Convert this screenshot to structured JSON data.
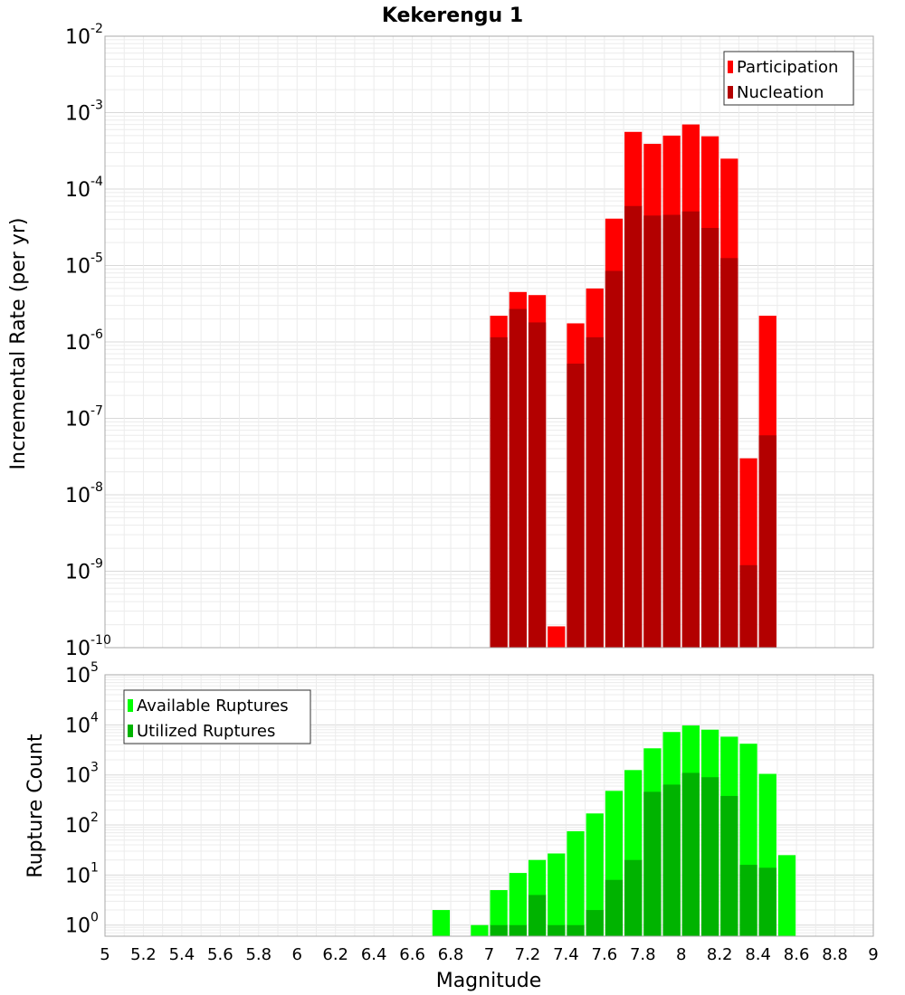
{
  "chart_data": {
    "title": "Kekerengu 1",
    "xlabel": "Magnitude",
    "x_ticks": [
      "5",
      "5.2",
      "5.4",
      "5.6",
      "5.8",
      "6",
      "6.2",
      "6.4",
      "6.6",
      "6.8",
      "7",
      "7.2",
      "7.4",
      "7.6",
      "7.8",
      "8",
      "8.2",
      "8.4",
      "8.6",
      "8.8",
      "9"
    ],
    "xlim": [
      5,
      9
    ],
    "bin_width": 0.1,
    "panels": [
      {
        "type": "bar",
        "ylabel": "Incremental Rate (per yr)",
        "yscale": "log",
        "ylim": [
          1e-10,
          0.01
        ],
        "y_ticks": [
          {
            "base": "10",
            "exp": "-10"
          },
          {
            "base": "10",
            "exp": "-9"
          },
          {
            "base": "10",
            "exp": "-8"
          },
          {
            "base": "10",
            "exp": "-7"
          },
          {
            "base": "10",
            "exp": "-6"
          },
          {
            "base": "10",
            "exp": "-5"
          },
          {
            "base": "10",
            "exp": "-4"
          },
          {
            "base": "10",
            "exp": "-3"
          },
          {
            "base": "10",
            "exp": "-2"
          }
        ],
        "legend_position": "top-right",
        "grid": true,
        "x": [
          7.05,
          7.15,
          7.25,
          7.35,
          7.45,
          7.55,
          7.65,
          7.75,
          7.85,
          7.95,
          8.05,
          8.15,
          8.25,
          8.35,
          8.45
        ],
        "series": [
          {
            "name": "Participation",
            "color": "#ff0000",
            "values": [
              2.2e-06,
              4.5e-06,
              4.1e-06,
              1.9e-10,
              1.75e-06,
              5e-06,
              4.1e-05,
              0.00056,
              0.00039,
              0.0005,
              0.0007,
              0.00049,
              0.00025,
              3e-08,
              2.2e-06
            ]
          },
          {
            "name": "Nucleation",
            "color": "#b30000",
            "values": [
              1.15e-06,
              2.7e-06,
              1.8e-06,
              null,
              5.2e-07,
              1.15e-06,
              8.5e-06,
              6e-05,
              4.5e-05,
              4.6e-05,
              5.1e-05,
              3.1e-05,
              1.25e-05,
              1.2e-09,
              6e-08
            ]
          }
        ]
      },
      {
        "type": "bar",
        "ylabel": "Rupture Count",
        "yscale": "log",
        "ylim": [
          0.6,
          100000.0
        ],
        "y_ticks": [
          {
            "base": "10",
            "exp": "0"
          },
          {
            "base": "10",
            "exp": "1"
          },
          {
            "base": "10",
            "exp": "2"
          },
          {
            "base": "10",
            "exp": "3"
          },
          {
            "base": "10",
            "exp": "4"
          },
          {
            "base": "10",
            "exp": "5"
          }
        ],
        "legend_position": "top-left",
        "grid": true,
        "x": [
          6.75,
          6.95,
          7.05,
          7.15,
          7.25,
          7.35,
          7.45,
          7.55,
          7.65,
          7.75,
          7.85,
          7.95,
          8.05,
          8.15,
          8.25,
          8.35,
          8.45,
          8.55
        ],
        "series": [
          {
            "name": "Available Ruptures",
            "color": "#00ff00",
            "values": [
              2,
              1,
              5,
              11,
              20,
              27,
              75,
              170,
              480,
              1250,
              3400,
              7200,
              9700,
              8000,
              5800,
              4200,
              1050,
              25
            ]
          },
          {
            "name": "Utilized Ruptures",
            "color": "#00b300",
            "values": [
              null,
              null,
              1,
              1,
              4,
              1,
              1,
              2,
              8,
              20,
              460,
              640,
              1100,
              900,
              380,
              16,
              14,
              null
            ]
          }
        ]
      }
    ]
  }
}
